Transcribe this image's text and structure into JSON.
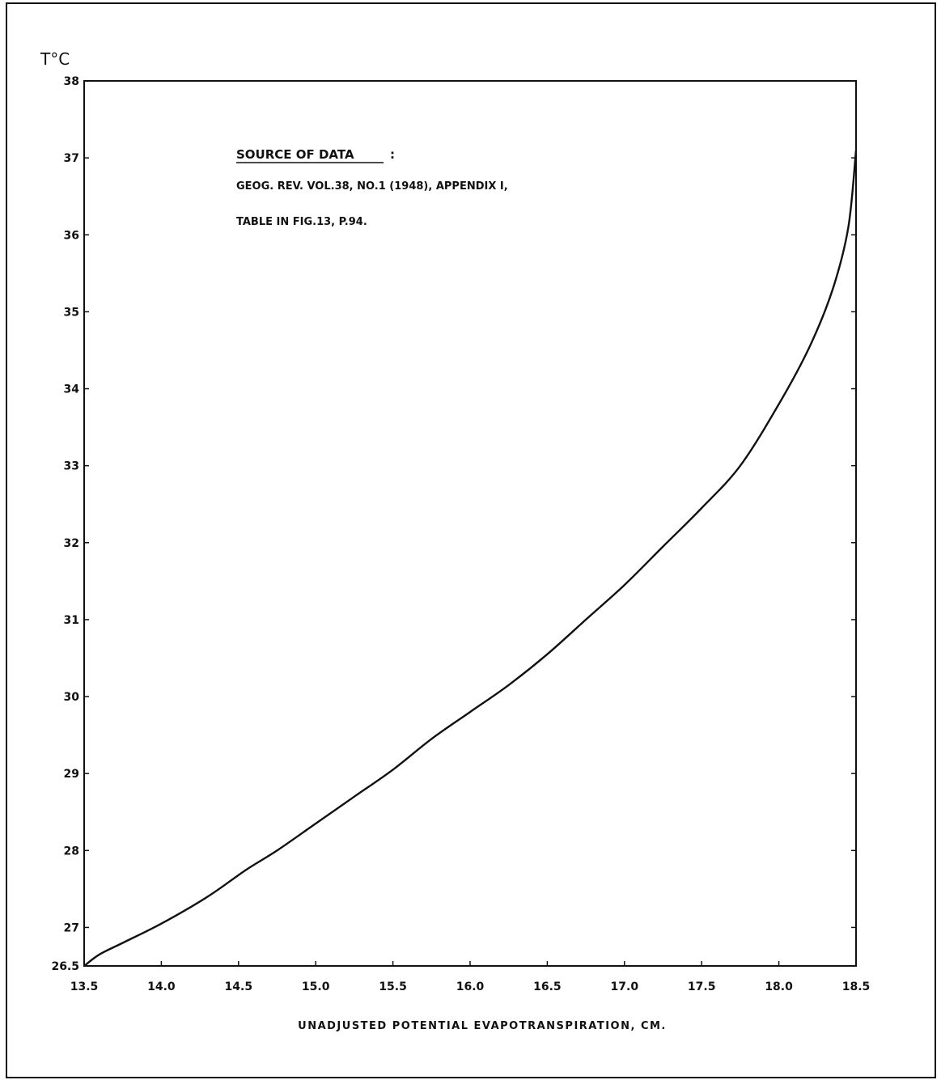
{
  "chart_data": {
    "type": "line",
    "title": "",
    "xlabel": "UNADJUSTED POTENTIAL EVAPOTRANSPIRATION, CM.",
    "ylabel": "T°C",
    "xlim": [
      13.5,
      18.5
    ],
    "ylim": [
      26.5,
      38
    ],
    "grid": false,
    "x_ticks": [
      "13.5",
      "14.0",
      "14.5",
      "15.0",
      "15.5",
      "16.0",
      "16.5",
      "17.0",
      "17.5",
      "18.0",
      "18.5"
    ],
    "x_tick_values": [
      13.5,
      14.0,
      14.5,
      15.0,
      15.5,
      16.0,
      16.5,
      17.0,
      17.5,
      18.0,
      18.5
    ],
    "y_ticks": [
      "26.5",
      "27",
      "28",
      "29",
      "30",
      "31",
      "32",
      "33",
      "34",
      "35",
      "36",
      "37",
      "38"
    ],
    "y_tick_values": [
      26.5,
      27,
      28,
      29,
      30,
      31,
      32,
      33,
      34,
      35,
      36,
      37,
      38
    ],
    "series": [
      {
        "x": [
          13.5,
          13.6,
          13.75,
          14.0,
          14.3,
          14.55,
          14.75,
          15.0,
          15.25,
          15.5,
          15.75,
          16.0,
          16.25,
          16.5,
          16.75,
          17.0,
          17.25,
          17.5,
          17.75,
          18.0,
          18.2,
          18.35,
          18.45,
          18.5
        ],
        "y": [
          26.5,
          26.65,
          26.8,
          27.05,
          27.4,
          27.75,
          28.0,
          28.35,
          28.7,
          29.05,
          29.45,
          29.8,
          30.15,
          30.55,
          31.0,
          31.45,
          31.95,
          32.45,
          33.0,
          33.8,
          34.55,
          35.3,
          36.1,
          37.1
        ]
      }
    ],
    "annotation": {
      "heading": "SOURCE OF DATA",
      "colon": ":",
      "line1": "GEOG. REV. VOL.38, NO.1 (1948), APPENDIX I,",
      "line2": "TABLE IN FIG.13, P.94."
    }
  }
}
